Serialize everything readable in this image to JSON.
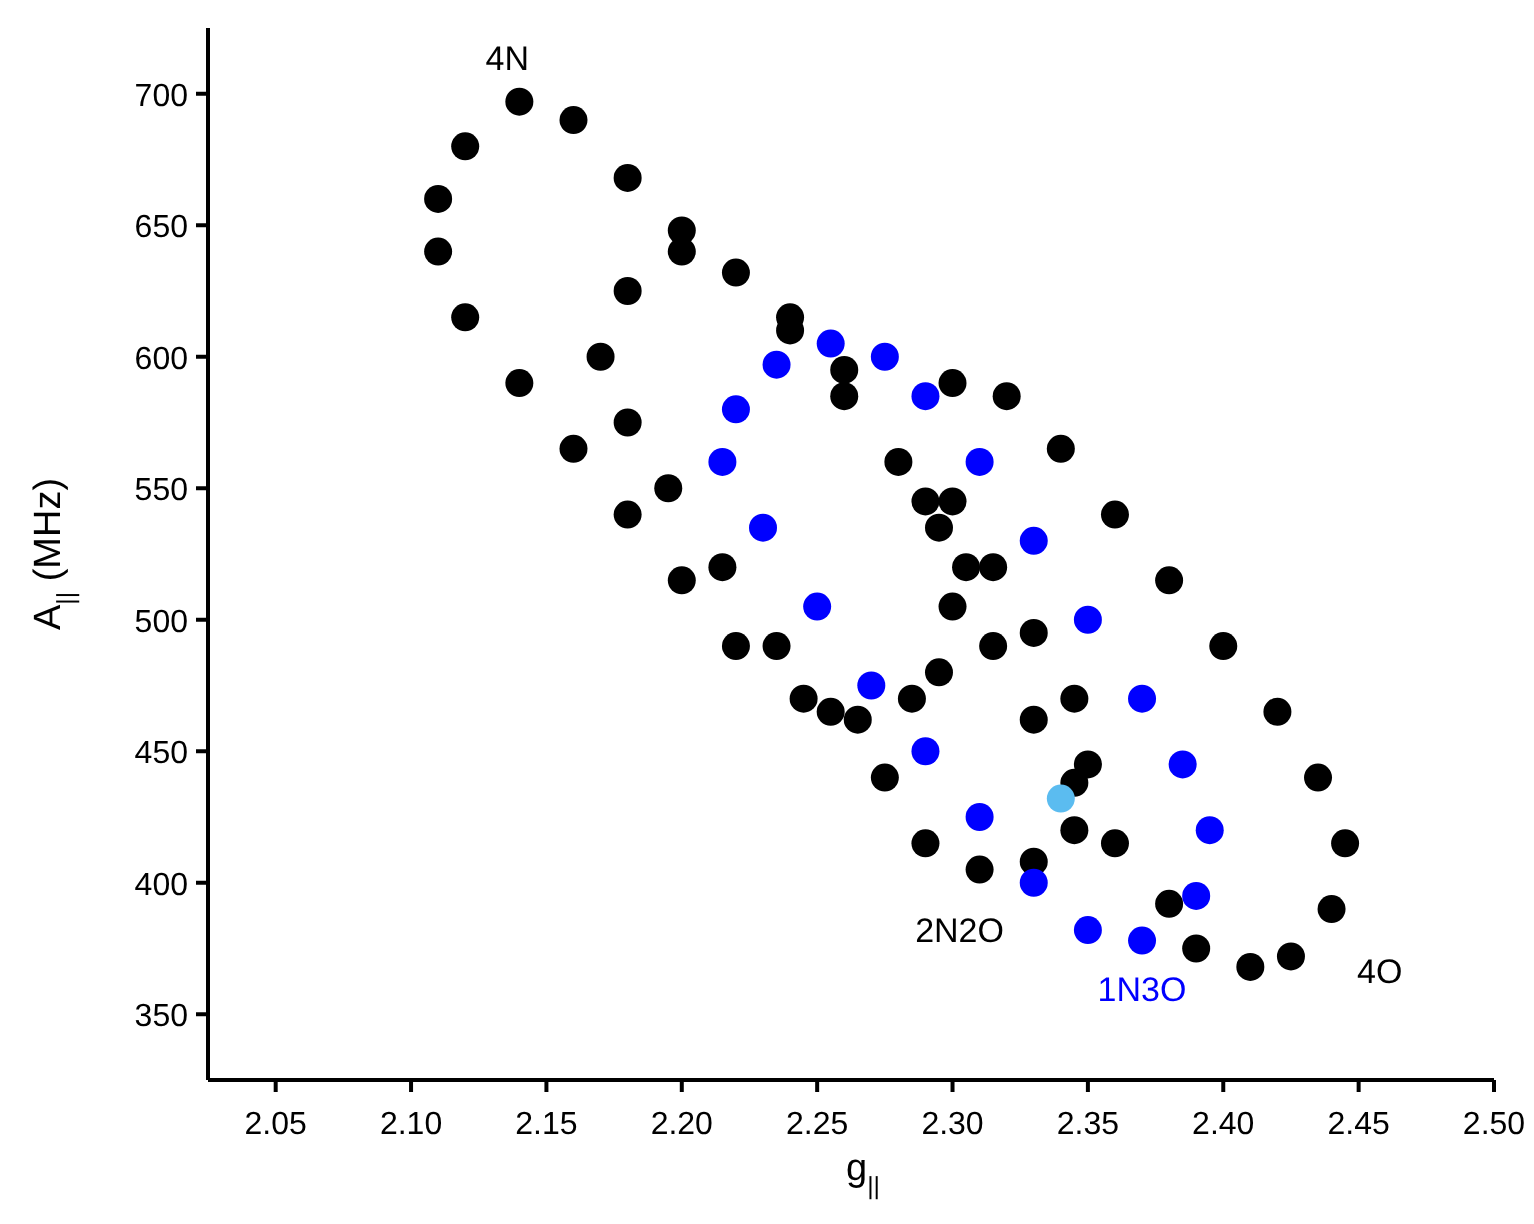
{
  "chart_data": {
    "type": "scatter",
    "xlabel": "g$_{||}$",
    "ylabel": "A$_{||}$ (MHz)",
    "xlim": [
      2.025,
      2.5
    ],
    "ylim": [
      325,
      725
    ],
    "xticks": [
      {
        "value": 2.05,
        "label": "2.05"
      },
      {
        "value": 2.1,
        "label": "2.10"
      },
      {
        "value": 2.15,
        "label": "2.15"
      },
      {
        "value": 2.2,
        "label": "2.20"
      },
      {
        "value": 2.25,
        "label": "2.25"
      },
      {
        "value": 2.3,
        "label": "2.30"
      },
      {
        "value": 2.35,
        "label": "2.35"
      },
      {
        "value": 2.4,
        "label": "2.40"
      },
      {
        "value": 2.45,
        "label": "2.45"
      },
      {
        "value": 2.5,
        "label": "2.50"
      }
    ],
    "yticks": [
      350,
      400,
      450,
      500,
      550,
      600,
      650,
      700
    ],
    "grid": false,
    "marker": "circle",
    "series": [
      {
        "name": "4N",
        "color": "#000000",
        "x": [
          2.14,
          2.16,
          2.18,
          2.2,
          2.22,
          2.24,
          2.26,
          2.28,
          2.295,
          2.3,
          2.295,
          2.285,
          2.265,
          2.245,
          2.22,
          2.2,
          2.18,
          2.16,
          2.14,
          2.12,
          2.11,
          2.11,
          2.12
        ],
        "values": [
          697,
          690,
          668,
          648,
          null,
          610,
          585,
          560,
          535,
          505,
          480,
          470,
          462,
          470,
          490,
          515,
          540,
          565,
          590,
          615,
          640,
          660,
          680
        ]
      },
      {
        "name": "2N2O",
        "color": "#000000",
        "x": [
          2.2,
          2.22,
          2.24,
          2.26,
          2.28,
          2.3,
          2.315,
          2.33,
          2.345,
          2.35,
          2.345,
          2.33,
          2.31,
          2.29,
          2.275,
          2.255,
          2.235,
          2.215,
          2.195,
          2.18,
          2.17,
          2.18
        ],
        "values": [
          640,
          632,
          615,
          595,
          null,
          545,
          520,
          495,
          470,
          445,
          420,
          408,
          405,
          415,
          440,
          465,
          490,
          520,
          550,
          575,
          600,
          625
        ]
      },
      {
        "name": "4O",
        "color": "#000000",
        "x": [
          2.3,
          2.32,
          2.34,
          2.36,
          2.38,
          2.4,
          2.42,
          2.435,
          2.445,
          2.44,
          2.425,
          2.41,
          2.39,
          2.38,
          2.36,
          2.345,
          2.33,
          2.315,
          2.305,
          2.29
        ],
        "values": [
          590,
          585,
          565,
          540,
          515,
          490,
          465,
          440,
          415,
          390,
          372,
          368,
          375,
          392,
          415,
          438,
          462,
          490,
          520,
          545
        ]
      },
      {
        "name": "1N3O",
        "color": "#0000ff",
        "x": [
          2.255,
          2.275,
          2.29,
          2.31,
          2.33,
          2.35,
          2.37,
          2.385,
          2.395,
          2.39,
          2.37,
          2.35,
          2.33,
          2.31,
          2.29,
          2.27,
          2.25,
          2.23,
          2.215,
          2.22,
          2.235
        ],
        "values": [
          605,
          600,
          585,
          560,
          530,
          500,
          470,
          445,
          420,
          395,
          378,
          382,
          400,
          425,
          450,
          475,
          505,
          535,
          560,
          580,
          597
        ]
      },
      {
        "type": "scatter",
        "color": "#5bbcf0",
        "x": [
          2.34
        ],
        "values": [
          432
        ]
      }
    ]
  }
}
